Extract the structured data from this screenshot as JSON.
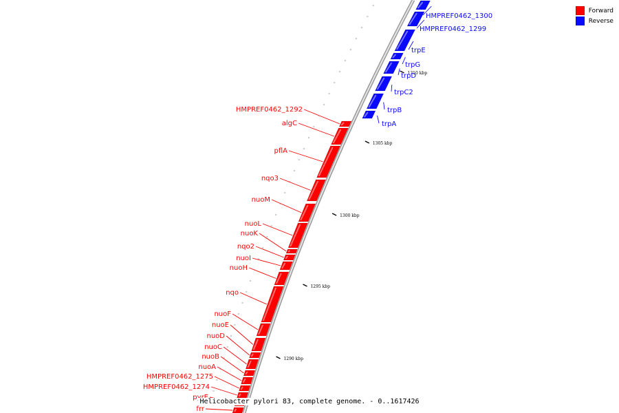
{
  "legend": {
    "forward_label": "Forward",
    "reverse_label": "Reverse",
    "forward_color": "#ff0000",
    "reverse_color": "#0a0aff"
  },
  "caption": "Helicobacter pylori 83, complete genome. - 0..1617426",
  "ticks": [
    {
      "label": "1310 kbp"
    },
    {
      "label": "1305 kbp"
    },
    {
      "label": "1300 kbp"
    },
    {
      "label": "1295 kbp"
    },
    {
      "label": "1290 kbp"
    }
  ],
  "reverse_genes": [
    {
      "name": "HMPREF0462_1300"
    },
    {
      "name": "HMPREF0462_1299"
    },
    {
      "name": "trpE"
    },
    {
      "name": "trpG"
    },
    {
      "name": "trpD"
    },
    {
      "name": "trpC2"
    },
    {
      "name": "trpB"
    },
    {
      "name": "trpA"
    }
  ],
  "forward_genes": [
    {
      "name": "HMPREF0462_1292"
    },
    {
      "name": "algC"
    },
    {
      "name": "pflA"
    },
    {
      "name": "nqo3"
    },
    {
      "name": "nuoM"
    },
    {
      "name": "nuoL"
    },
    {
      "name": "nuoK"
    },
    {
      "name": "nqo2"
    },
    {
      "name": "nuoI"
    },
    {
      "name": "nuoH"
    },
    {
      "name": "nqo"
    },
    {
      "name": "nuoF"
    },
    {
      "name": "nuoE"
    },
    {
      "name": "nuoD"
    },
    {
      "name": "nuoC"
    },
    {
      "name": "nuoB"
    },
    {
      "name": "nuoA"
    },
    {
      "name": "HMPREF0462_1275"
    },
    {
      "name": "HMPREF0462_1274"
    },
    {
      "name": "pyrE"
    },
    {
      "name": "frr"
    }
  ]
}
